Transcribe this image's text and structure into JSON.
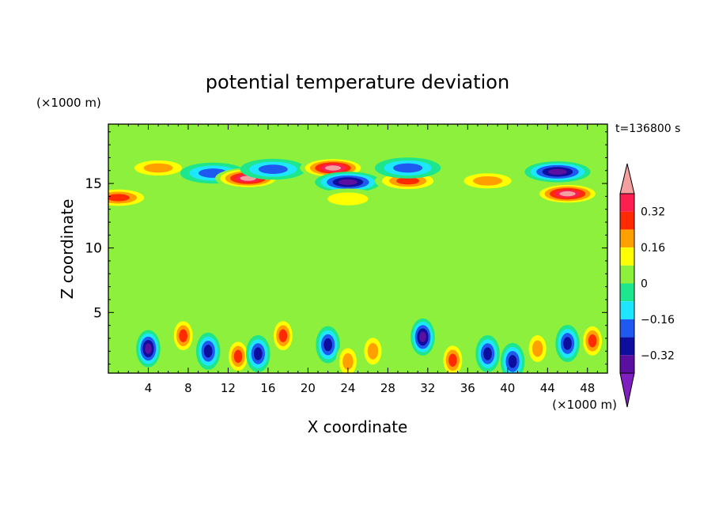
{
  "chart_data": {
    "type": "heatmap",
    "title": "potential temperature deviation",
    "xlabel": "X coordinate",
    "ylabel": "Z coordinate",
    "x_unit": "(×1000 m)",
    "z_unit": "(×1000 m)",
    "time_label": "t=136800 s",
    "xlim": [
      0,
      50
    ],
    "zlim": [
      0.3,
      19.6
    ],
    "x_ticks": [
      "4",
      "8",
      "12",
      "16",
      "20",
      "24",
      "28",
      "32",
      "36",
      "40",
      "44",
      "48"
    ],
    "z_ticks": [
      "5",
      "10",
      "15"
    ],
    "colorbar": {
      "levels": [
        -0.4,
        -0.32,
        -0.24,
        -0.16,
        -0.08,
        0,
        0.08,
        0.16,
        0.24,
        0.32,
        0.4
      ],
      "tick_labels": [
        "0.32",
        "0.16",
        "0",
        "−0.16",
        "−0.32"
      ],
      "colors": [
        "#7f1fbf",
        "#5a0fa0",
        "#0d0d9e",
        "#1e5af0",
        "#1ee6ff",
        "#1ee68c",
        "#8cf03c",
        "#ffff00",
        "#ffa000",
        "#ff2a00",
        "#ff1e50",
        "#f5a0a0"
      ],
      "extend": "both"
    },
    "field_features": [
      {
        "x": 5,
        "z": 16.2,
        "value": 0.25
      },
      {
        "x": 10.5,
        "z": 15.8,
        "value": -0.2
      },
      {
        "x": 14,
        "z": 15.4,
        "value": 0.45
      },
      {
        "x": 16.5,
        "z": 16.1,
        "value": -0.25
      },
      {
        "x": 22.5,
        "z": 16.2,
        "value": 0.45
      },
      {
        "x": 24,
        "z": 15.1,
        "value": -0.4
      },
      {
        "x": 30,
        "z": 15.2,
        "value": 0.32
      },
      {
        "x": 30,
        "z": 16.2,
        "value": -0.2
      },
      {
        "x": 38,
        "z": 15.2,
        "value": 0.25
      },
      {
        "x": 45,
        "z": 15.9,
        "value": -0.38
      },
      {
        "x": 46,
        "z": 14.2,
        "value": 0.45
      },
      {
        "x": 1,
        "z": 13.9,
        "value": 0.3
      },
      {
        "x": 24,
        "z": 13.8,
        "value": 0.15
      },
      {
        "x": 4,
        "z": 2.2,
        "value": -0.38
      },
      {
        "x": 7.5,
        "z": 3.2,
        "value": 0.3
      },
      {
        "x": 10,
        "z": 2.0,
        "value": -0.35
      },
      {
        "x": 13,
        "z": 1.6,
        "value": 0.28
      },
      {
        "x": 15,
        "z": 1.8,
        "value": -0.32
      },
      {
        "x": 17.5,
        "z": 3.2,
        "value": 0.35
      },
      {
        "x": 22,
        "z": 2.5,
        "value": -0.3
      },
      {
        "x": 24,
        "z": 1.2,
        "value": 0.2
      },
      {
        "x": 26.5,
        "z": 2.0,
        "value": 0.25
      },
      {
        "x": 31.5,
        "z": 3.1,
        "value": -0.38
      },
      {
        "x": 34.5,
        "z": 1.3,
        "value": 0.28
      },
      {
        "x": 38,
        "z": 1.8,
        "value": -0.32
      },
      {
        "x": 40.5,
        "z": 1.2,
        "value": -0.35
      },
      {
        "x": 43,
        "z": 2.2,
        "value": 0.25
      },
      {
        "x": 46,
        "z": 2.6,
        "value": -0.3
      },
      {
        "x": 48.5,
        "z": 2.8,
        "value": 0.3
      }
    ]
  }
}
